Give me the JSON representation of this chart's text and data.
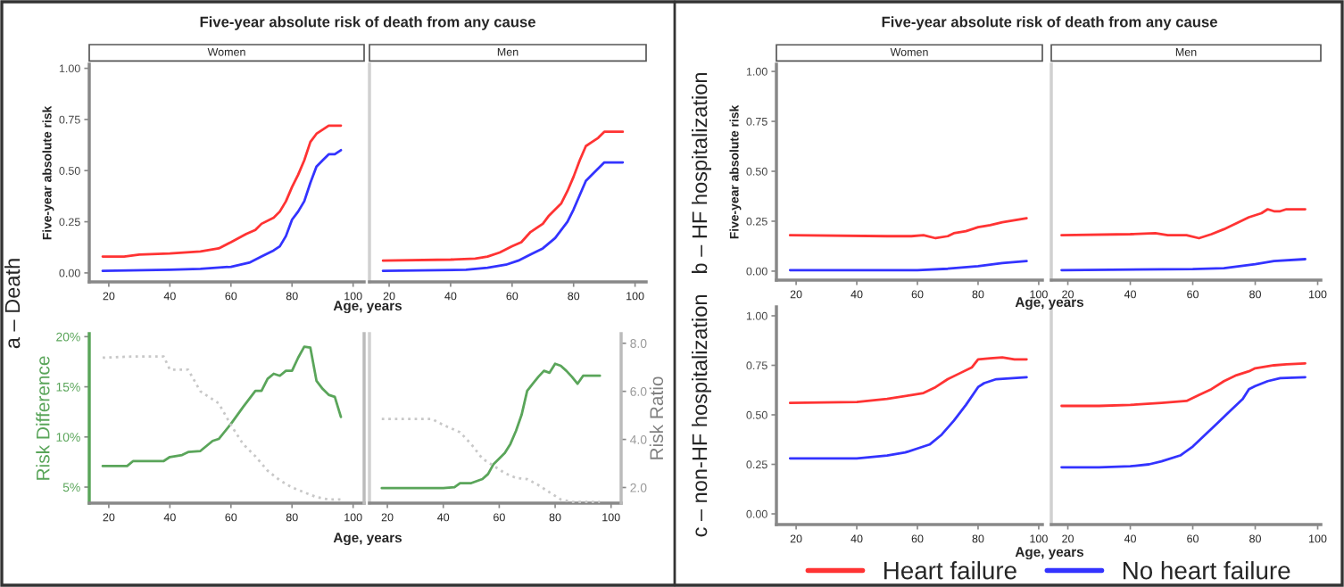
{
  "chart_data": [
    {
      "type": "line",
      "title": "Five-year absolute risk of death from any cause",
      "subtitle": "Women",
      "xlabel": "Age, years",
      "ylabel": "Five-year absolute risk",
      "annotations": [
        "a – Death"
      ],
      "xlim": [
        13.6,
        103.6
      ],
      "xticks": [
        20,
        40,
        60,
        80,
        100
      ],
      "ylim": [
        -0.044,
        1.02
      ],
      "yticks": [
        {
          "value": 0,
          "label": "0.00"
        },
        {
          "value": 0.25,
          "label": "0.25"
        },
        {
          "value": 0.5,
          "label": "0.50"
        },
        {
          "value": 0.75,
          "label": "0.75"
        },
        {
          "value": 1,
          "label": "1.00"
        }
      ],
      "series": [
        {
          "color": "#ff3333",
          "x": [
            18,
            25,
            30,
            40,
            50,
            56,
            60,
            65,
            68,
            70,
            74,
            76,
            78,
            80,
            82,
            84,
            86,
            88,
            90,
            92,
            96
          ],
          "values": [
            0.08,
            0.08,
            0.09,
            0.095,
            0.105,
            0.12,
            0.15,
            0.19,
            0.21,
            0.24,
            0.27,
            0.3,
            0.35,
            0.42,
            0.48,
            0.55,
            0.64,
            0.68,
            0.7,
            0.72,
            0.72
          ]
        },
        {
          "color": "#3333ff",
          "x": [
            18,
            40,
            50,
            60,
            66,
            70,
            74,
            76,
            78,
            80,
            82,
            84,
            86,
            88,
            90,
            92,
            94,
            96
          ],
          "values": [
            0.01,
            0.015,
            0.02,
            0.03,
            0.05,
            0.08,
            0.11,
            0.13,
            0.18,
            0.26,
            0.3,
            0.35,
            0.44,
            0.52,
            0.55,
            0.58,
            0.58,
            0.6
          ]
        }
      ]
    },
    {
      "type": "line",
      "subtitle": "Men",
      "tick_labels": "x",
      "xlim": [
        13.6,
        103.6
      ],
      "xticks": [
        20,
        40,
        60,
        80,
        100
      ],
      "ylim": [
        -0.044,
        1.02
      ],
      "series": [
        {
          "color": "#ff3333",
          "x": [
            18,
            40,
            48,
            52,
            56,
            60,
            63,
            66,
            70,
            72,
            76,
            78,
            80,
            82,
            84,
            86,
            88,
            90,
            96
          ],
          "values": [
            0.06,
            0.065,
            0.07,
            0.08,
            0.1,
            0.13,
            0.15,
            0.2,
            0.24,
            0.28,
            0.34,
            0.4,
            0.47,
            0.55,
            0.62,
            0.64,
            0.66,
            0.69,
            0.69
          ]
        },
        {
          "color": "#3333ff",
          "x": [
            18,
            45,
            52,
            58,
            62,
            66,
            70,
            74,
            78,
            80,
            84,
            86,
            90,
            96
          ],
          "values": [
            0.01,
            0.015,
            0.025,
            0.04,
            0.06,
            0.09,
            0.12,
            0.17,
            0.25,
            0.31,
            0.45,
            0.48,
            0.54,
            0.54
          ]
        }
      ]
    },
    {
      "type": "line",
      "xlabel": "Age, years",
      "ylabel": "Risk Difference",
      "tick_labels": [
        "x",
        "y"
      ],
      "xlim": [
        13.6,
        103.6
      ],
      "xticks": [
        20,
        40,
        60,
        80,
        100
      ],
      "ylim": [
        3.4,
        20.3
      ],
      "yticks": [
        {
          "value": 5,
          "label": "5%"
        },
        {
          "value": 10,
          "label": "10%"
        },
        {
          "value": 15,
          "label": "15%"
        },
        {
          "value": 20,
          "label": "20%"
        }
      ],
      "y2lim": [
        1.35,
        8.4
      ],
      "series": [
        {
          "color": "#5aa55a",
          "x": [
            18,
            26,
            28,
            38,
            40,
            44,
            46,
            50,
            54,
            56,
            60,
            64,
            68,
            70,
            72,
            74,
            76,
            78,
            80,
            82,
            84,
            86,
            88,
            90,
            92,
            94,
            96
          ],
          "values": [
            7.1,
            7.1,
            7.6,
            7.6,
            8.0,
            8.2,
            8.5,
            8.6,
            9.6,
            9.8,
            11.3,
            13.0,
            14.6,
            14.6,
            15.8,
            16.3,
            16.1,
            16.6,
            16.6,
            17.9,
            19.0,
            18.9,
            15.6,
            14.8,
            14.2,
            14.0,
            12.0
          ]
        },
        {
          "color": "#c8c8c8",
          "axis": "y2",
          "line_style": "dotted",
          "x": [
            18,
            28,
            38,
            40,
            46,
            50,
            56,
            60,
            64,
            68,
            72,
            76,
            80,
            84,
            88,
            92,
            96
          ],
          "values": [
            7.4,
            7.45,
            7.45,
            6.9,
            6.9,
            6.0,
            5.5,
            4.6,
            3.8,
            3.3,
            2.7,
            2.3,
            2.0,
            1.8,
            1.6,
            1.5,
            1.5
          ]
        }
      ]
    },
    {
      "type": "line",
      "y2label": "Risk Ratio",
      "tick_labels": [
        "x",
        "y2"
      ],
      "xlim": [
        13.6,
        103.6
      ],
      "xticks": [
        20,
        40,
        60,
        80,
        100
      ],
      "ylim": [
        3.4,
        20.3
      ],
      "y2lim": [
        1.35,
        8.4
      ],
      "y2ticks": [
        {
          "value": 2,
          "label": "2.0"
        },
        {
          "value": 4,
          "label": "4.0"
        },
        {
          "value": 6,
          "label": "6.0"
        },
        {
          "value": 8,
          "label": "8.0"
        }
      ],
      "series": [
        {
          "color": "#5aa55a",
          "x": [
            18,
            40,
            44,
            46,
            50,
            54,
            56,
            58,
            62,
            64,
            66,
            68,
            70,
            72,
            74,
            76,
            78,
            80,
            82,
            84,
            86,
            88,
            90,
            96
          ],
          "values": [
            4.9,
            4.9,
            5.0,
            5.4,
            5.4,
            5.8,
            6.3,
            7.3,
            8.4,
            9.3,
            10.6,
            12.2,
            14.6,
            15.3,
            16.0,
            16.6,
            16.4,
            17.3,
            17.1,
            16.6,
            16.0,
            15.3,
            16.1,
            16.1
          ]
        },
        {
          "color": "#c8c8c8",
          "axis": "y2",
          "line_style": "dotted",
          "x": [
            18,
            36,
            40,
            46,
            50,
            54,
            58,
            62,
            66,
            70,
            74,
            78,
            82,
            86,
            96
          ],
          "values": [
            4.85,
            4.85,
            4.6,
            4.3,
            3.8,
            3.2,
            2.9,
            2.6,
            2.4,
            2.35,
            2.1,
            1.8,
            1.5,
            1.4,
            1.4
          ]
        }
      ]
    },
    {
      "type": "line",
      "title": "Five-year absolute risk of death from any cause",
      "subtitle": "Women",
      "xlabel": "Age, years",
      "ylabel": "Five-year absolute risk",
      "annotations": [
        "b – HF hospitalization"
      ],
      "xlim": [
        13.5,
        101.2
      ],
      "xticks": [
        20,
        40,
        60,
        80,
        100
      ],
      "ylim": [
        -0.045,
        1.036
      ],
      "yticks": [
        {
          "value": 0,
          "label": "0.00"
        },
        {
          "value": 0.25,
          "label": "0.25"
        },
        {
          "value": 0.5,
          "label": "0.50"
        },
        {
          "value": 0.75,
          "label": "0.75"
        },
        {
          "value": 1,
          "label": "1.00"
        }
      ],
      "series": [
        {
          "color": "#ff3333",
          "x": [
            18,
            50,
            58,
            62,
            66,
            70,
            72,
            76,
            80,
            84,
            88,
            96
          ],
          "values": [
            0.18,
            0.175,
            0.175,
            0.18,
            0.165,
            0.175,
            0.19,
            0.2,
            0.22,
            0.23,
            0.245,
            0.265
          ]
        },
        {
          "color": "#3333ff",
          "x": [
            18,
            60,
            70,
            80,
            88,
            96
          ],
          "values": [
            0.005,
            0.005,
            0.012,
            0.025,
            0.04,
            0.05
          ]
        }
      ]
    },
    {
      "type": "line",
      "subtitle": "Men",
      "tick_labels": "x",
      "xlim": [
        14.7,
        101
      ],
      "xticks": [
        20,
        40,
        60,
        80,
        100
      ],
      "ylim": [
        -0.045,
        1.036
      ],
      "series": [
        {
          "color": "#ff3333",
          "x": [
            18,
            40,
            48,
            52,
            58,
            62,
            66,
            70,
            74,
            78,
            82,
            84,
            86,
            88,
            90,
            96
          ],
          "values": [
            0.18,
            0.185,
            0.19,
            0.18,
            0.18,
            0.165,
            0.185,
            0.21,
            0.24,
            0.27,
            0.29,
            0.31,
            0.3,
            0.3,
            0.31,
            0.31
          ]
        },
        {
          "color": "#3333ff",
          "x": [
            18,
            60,
            70,
            80,
            86,
            96
          ],
          "values": [
            0.005,
            0.01,
            0.015,
            0.035,
            0.05,
            0.06
          ]
        }
      ]
    },
    {
      "type": "line",
      "xlabel": "Age, years",
      "annotations": [
        "c – non-HF hospitalization"
      ],
      "xlim": [
        13.5,
        101.2
      ],
      "xticks": [
        20,
        40,
        60,
        80,
        100
      ],
      "ylim": [
        -0.054,
        1.045
      ],
      "yticks": [
        {
          "value": 0,
          "label": "0.00"
        },
        {
          "value": 0.25,
          "label": "0.25"
        },
        {
          "value": 0.5,
          "label": "0.50"
        },
        {
          "value": 0.75,
          "label": "0.75"
        },
        {
          "value": 1,
          "label": "1.00"
        }
      ],
      "series": [
        {
          "color": "#ff3333",
          "x": [
            18,
            40,
            50,
            58,
            62,
            66,
            70,
            74,
            78,
            80,
            84,
            88,
            92,
            96
          ],
          "values": [
            0.56,
            0.565,
            0.58,
            0.6,
            0.61,
            0.64,
            0.68,
            0.71,
            0.74,
            0.78,
            0.785,
            0.79,
            0.78,
            0.78
          ]
        },
        {
          "color": "#3333ff",
          "x": [
            18,
            40,
            50,
            56,
            60,
            64,
            68,
            72,
            76,
            80,
            82,
            86,
            96
          ],
          "values": [
            0.28,
            0.28,
            0.295,
            0.31,
            0.33,
            0.35,
            0.4,
            0.47,
            0.55,
            0.64,
            0.66,
            0.68,
            0.69
          ]
        }
      ]
    },
    {
      "type": "line",
      "tick_labels": "x",
      "legend": "bottom",
      "xlim": [
        14.7,
        101
      ],
      "xticks": [
        20,
        40,
        60,
        80,
        100
      ],
      "ylim": [
        -0.054,
        1.045
      ],
      "series": [
        {
          "name": "Heart failure",
          "color": "#ff3333",
          "x": [
            18,
            30,
            40,
            50,
            58,
            62,
            66,
            70,
            74,
            78,
            80,
            86,
            90,
            96
          ],
          "values": [
            0.545,
            0.545,
            0.55,
            0.56,
            0.57,
            0.6,
            0.63,
            0.67,
            0.7,
            0.72,
            0.735,
            0.75,
            0.755,
            0.76
          ]
        },
        {
          "name": "No heart failure",
          "color": "#3333ff",
          "x": [
            18,
            30,
            40,
            46,
            50,
            56,
            60,
            64,
            68,
            72,
            76,
            78,
            80,
            84,
            88,
            96
          ],
          "values": [
            0.235,
            0.235,
            0.24,
            0.25,
            0.265,
            0.295,
            0.34,
            0.4,
            0.46,
            0.52,
            0.58,
            0.63,
            0.645,
            0.67,
            0.685,
            0.69
          ]
        }
      ]
    }
  ]
}
